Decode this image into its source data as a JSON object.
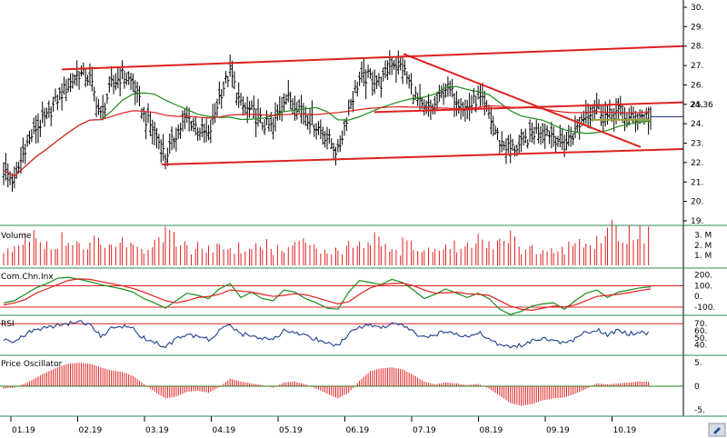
{
  "colors": {
    "background": "#ffffff",
    "price_bar": "#000000",
    "sma_short": "#1a8c1a",
    "sma_long": "#e02020",
    "trendline": "#e02020",
    "divider": "#2e8b57",
    "volume": "#e02020",
    "cci_fast": "#1a8c1a",
    "cci_slow": "#e02020",
    "rsi_line": "#1f3f8f",
    "osc_bar": "#e02020",
    "ref_line": "#e02020",
    "current_price_line": "#1f3f8f",
    "zero_line": "#1a8c1a"
  },
  "chart_data": [
    {
      "type": "ohlc",
      "panel": "price",
      "title": "",
      "xlabel": "",
      "ylabel": "",
      "ylim": [
        19,
        30
      ],
      "y_ticks": [
        "19.",
        "20.",
        "21.",
        "22.",
        "23.",
        "24.",
        "25.",
        "26.",
        "27.",
        "28.",
        "29.",
        "30."
      ],
      "x_ticks": [
        "01.19",
        "02.19",
        "03.19",
        "04.19",
        "05.19",
        "06.19",
        "07.19",
        "08.19",
        "09.19",
        "10.19"
      ],
      "last_price_label": "24.36",
      "grid": false,
      "closes_weekly": [
        21.6,
        21.0,
        22.8,
        23.8,
        24.3,
        25.3,
        26.0,
        26.6,
        26.3,
        24.4,
        26.0,
        26.5,
        26.1,
        24.4,
        23.6,
        22.3,
        23.5,
        24.3,
        23.8,
        23.3,
        25.4,
        26.7,
        24.9,
        24.6,
        24.0,
        23.8,
        25.4,
        25.1,
        24.5,
        23.9,
        23.3,
        22.5,
        24.8,
        26.3,
        26.4,
        26.1,
        27.2,
        26.9,
        25.6,
        24.6,
        24.9,
        25.9,
        25.3,
        24.7,
        25.4,
        24.5,
        23.1,
        22.7,
        22.9,
        23.5,
        23.8,
        23.4,
        22.9,
        23.6,
        24.6,
        24.9,
        24.3,
        24.7,
        24.2,
        24.4,
        24.36
      ],
      "overlays": [
        {
          "name": "",
          "kind": "moving_average",
          "color_key": "sma_short"
        },
        {
          "name": "",
          "kind": "moving_average",
          "color_key": "sma_long"
        }
      ],
      "trendlines": [
        {
          "from": [
            "01.19",
            26.8
          ],
          "to": [
            "end",
            28.0
          ]
        },
        {
          "from": [
            "03.19",
            21.9
          ],
          "to": [
            "end",
            22.7
          ]
        },
        {
          "from": [
            "07.19",
            27.6
          ],
          "to": [
            "10.19",
            22.8
          ]
        },
        {
          "from": [
            "07.19",
            24.6
          ],
          "to": [
            "end",
            25.1
          ]
        }
      ]
    },
    {
      "type": "bar",
      "panel": "volume",
      "title": "Volume",
      "y_ticks": [
        "1. M",
        "2. M",
        "3. M"
      ],
      "ylim": [
        0,
        3.6
      ],
      "weekly_volume_m": [
        1.6,
        1.9,
        2.5,
        2.1,
        1.8,
        2.4,
        2.0,
        1.6,
        2.7,
        1.5,
        1.9,
        2.2,
        1.7,
        1.4,
        2.6,
        2.9,
        1.8,
        1.5,
        1.9,
        2.1,
        2.4,
        1.7,
        1.6,
        1.8,
        2.2,
        1.5,
        1.6,
        2.0,
        1.9,
        1.4,
        1.7,
        1.6,
        1.9,
        2.2,
        2.4,
        1.8,
        1.6,
        2.6,
        1.4,
        1.8,
        1.5,
        1.9,
        1.6,
        1.7,
        2.3,
        1.8,
        2.8,
        2.5,
        1.6,
        1.5,
        1.4,
        1.6,
        1.7,
        2.0,
        1.8,
        3.1,
        3.3,
        2.5,
        2.9,
        3.0,
        1.0
      ]
    },
    {
      "type": "line",
      "panel": "cci",
      "title": "Com.Chn.Inx",
      "y_ticks": [
        "200.",
        "100.",
        "0.",
        "-100."
      ],
      "ylim": [
        -160,
        240
      ],
      "reference_lines": [
        100,
        -100
      ],
      "series": [
        {
          "name": "",
          "color_key": "cci_fast",
          "values": [
            -60,
            -40,
            20,
            80,
            120,
            170,
            180,
            160,
            140,
            110,
            90,
            70,
            40,
            -20,
            -60,
            -110,
            -40,
            30,
            10,
            -20,
            70,
            120,
            -10,
            40,
            -20,
            -40,
            60,
            40,
            -20,
            -60,
            -110,
            -120,
            40,
            150,
            130,
            110,
            160,
            130,
            60,
            -20,
            20,
            70,
            30,
            -10,
            30,
            -20,
            -120,
            -170,
            -140,
            -90,
            -70,
            -60,
            -120,
            -40,
            30,
            60,
            -10,
            40,
            60,
            80,
            90
          ]
        },
        {
          "name": "",
          "color_key": "cci_slow",
          "values": [
            -80,
            -60,
            -30,
            30,
            70,
            110,
            150,
            165,
            160,
            140,
            120,
            100,
            75,
            40,
            0,
            -40,
            -60,
            -40,
            -10,
            0,
            20,
            60,
            50,
            40,
            20,
            0,
            10,
            25,
            15,
            -10,
            -40,
            -70,
            -50,
            20,
            80,
            110,
            120,
            125,
            100,
            60,
            30,
            35,
            40,
            25,
            20,
            10,
            -40,
            -90,
            -120,
            -130,
            -110,
            -90,
            -100,
            -80,
            -40,
            0,
            10,
            20,
            35,
            55,
            70
          ]
        }
      ]
    },
    {
      "type": "line",
      "panel": "rsi",
      "title": "RSI",
      "y_ticks": [
        "70.",
        "60.",
        "50.",
        "40."
      ],
      "ylim": [
        28,
        78
      ],
      "reference_lines": [
        70
      ],
      "series": [
        {
          "name": "",
          "color_key": "rsi_line",
          "values": [
            48,
            44,
            55,
            62,
            64,
            68,
            70,
            72,
            70,
            52,
            63,
            66,
            63,
            50,
            44,
            36,
            48,
            55,
            52,
            48,
            60,
            68,
            55,
            54,
            50,
            48,
            60,
            58,
            52,
            48,
            44,
            38,
            56,
            66,
            67,
            64,
            70,
            68,
            58,
            50,
            54,
            60,
            56,
            52,
            58,
            50,
            40,
            36,
            40,
            46,
            50,
            46,
            42,
            48,
            58,
            62,
            55,
            60,
            56,
            58,
            57
          ]
        }
      ]
    },
    {
      "type": "bar",
      "panel": "price_oscillator",
      "title": "Price Oscillator",
      "y_ticks": [
        "5.",
        "0",
        "-5."
      ],
      "ylim": [
        -6,
        6
      ],
      "reference_lines": [
        0
      ],
      "weekly_values": [
        -0.5,
        -0.3,
        0.6,
        1.8,
        3.0,
        4.0,
        4.8,
        5.0,
        4.8,
        4.0,
        3.4,
        3.0,
        2.2,
        0.5,
        -1.2,
        -2.6,
        -2.2,
        -1.2,
        -1.0,
        -1.4,
        -0.2,
        1.6,
        1.0,
        0.6,
        0.2,
        -0.3,
        0.8,
        1.0,
        0.4,
        -0.5,
        -1.6,
        -2.6,
        -1.4,
        1.2,
        3.2,
        3.8,
        4.0,
        3.6,
        2.4,
        1.0,
        0.4,
        0.8,
        0.6,
        0.2,
        0.5,
        -0.5,
        -2.0,
        -3.6,
        -4.2,
        -3.8,
        -3.0,
        -2.6,
        -2.4,
        -1.6,
        -0.6,
        0.6,
        0.4,
        0.6,
        0.8,
        1.0,
        0.9
      ]
    }
  ]
}
